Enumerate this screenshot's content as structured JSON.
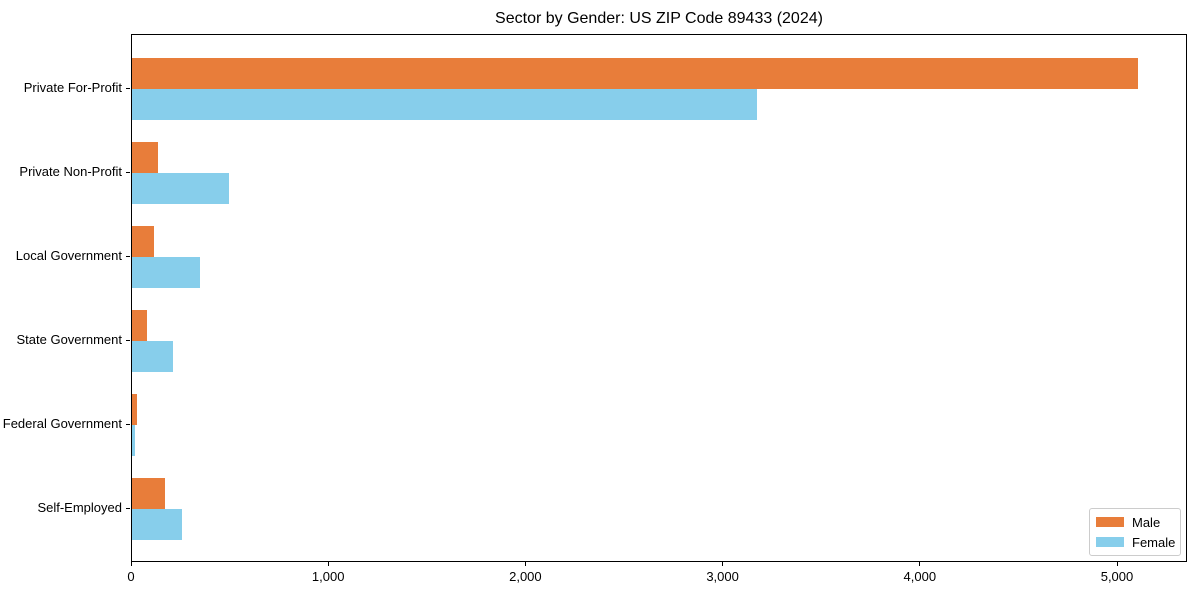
{
  "figure": {
    "title": "Sector by Gender: US ZIP Code 89433 (2024)"
  },
  "chart_data": {
    "type": "bar",
    "orientation": "horizontal",
    "title": "Sector by Gender: US ZIP Code 89433 (2024)",
    "categories": [
      "Private For-Profit",
      "Private Non-Profit",
      "Local Government",
      "State Government",
      "Federal Government",
      "Self-Employed"
    ],
    "series": [
      {
        "name": "Male",
        "color": "#e87d3a",
        "values": [
          5100,
          130,
          110,
          75,
          27,
          165
        ]
      },
      {
        "name": "Female",
        "color": "#87ceeb",
        "values": [
          3170,
          490,
          345,
          210,
          17,
          255
        ]
      }
    ],
    "xlabel": "",
    "ylabel": "",
    "xlim": [
      0,
      5355
    ],
    "xticks": [
      0,
      1000,
      2000,
      3000,
      4000,
      5000
    ],
    "xtick_labels": [
      "0",
      "1,000",
      "2,000",
      "3,000",
      "4,000",
      "5,000"
    ],
    "grid": false,
    "legend": {
      "position": "lower-right",
      "entries": [
        "Male",
        "Female"
      ]
    }
  }
}
